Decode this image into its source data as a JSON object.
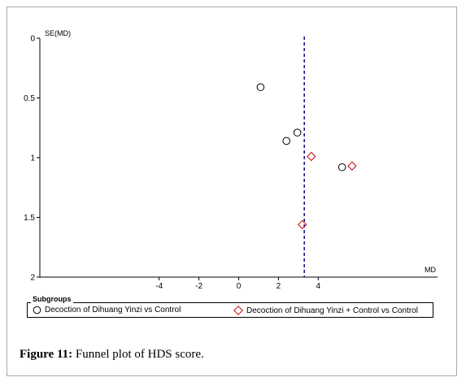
{
  "chart_data": {
    "type": "scatter",
    "title": "",
    "xlabel": "MD",
    "ylabel": "SE(MD)",
    "xlim": [
      -10,
      10
    ],
    "ylim": [
      0,
      2
    ],
    "y_inverted": true,
    "x_ticks": [
      -4,
      -2,
      0,
      2,
      4
    ],
    "y_ticks": [
      0,
      0.5,
      1,
      1.5,
      2
    ],
    "y_tick_labels": [
      "0",
      "0.5",
      "1",
      "1.5",
      "2"
    ],
    "pooled_effect_line": 3.3,
    "grid": false,
    "legend_title": "Subgroups",
    "legend_position": "bottom",
    "series": [
      {
        "name": "Decoction of Dihuang Yinzi vs Control",
        "marker": "circle",
        "color": "#000000",
        "points": [
          {
            "x": 1.1,
            "y": 0.41
          },
          {
            "x": 2.95,
            "y": 0.79
          },
          {
            "x": 2.4,
            "y": 0.86
          },
          {
            "x": 5.2,
            "y": 1.08
          }
        ]
      },
      {
        "name": "Decoction of Dihuang Yinzi + Control vs Control",
        "marker": "diamond",
        "color": "#cc0000",
        "points": [
          {
            "x": 3.65,
            "y": 0.99
          },
          {
            "x": 5.7,
            "y": 1.07
          },
          {
            "x": 3.2,
            "y": 1.56
          }
        ]
      }
    ]
  },
  "figure": {
    "caption_label": "Figure 11:",
    "caption_text": " Funnel plot of HDS score."
  }
}
